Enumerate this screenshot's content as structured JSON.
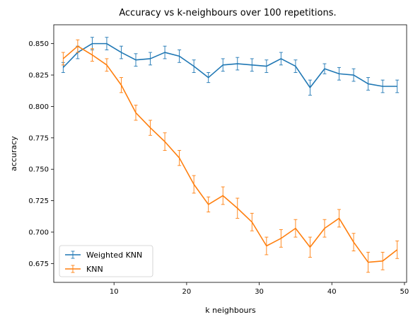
{
  "chart_data": {
    "type": "line",
    "title": "Accuracy vs k-neighbours over 100 repetitions.",
    "xlabel": "k neighbours",
    "ylabel": "accuracy",
    "xlim": [
      1.7,
      50.3
    ],
    "ylim": [
      0.66,
      0.865
    ],
    "xticks": [
      10,
      20,
      30,
      40,
      50
    ],
    "yticks": [
      0.675,
      0.7,
      0.725,
      0.75,
      0.775,
      0.8,
      0.825,
      0.85
    ],
    "ytick_labels": [
      "0.675",
      "0.700",
      "0.725",
      "0.750",
      "0.775",
      "0.800",
      "0.825",
      "0.850"
    ],
    "xtick_labels": [
      "10",
      "20",
      "30",
      "40",
      "50"
    ],
    "grid": false,
    "legend": "lower-left",
    "x": [
      3,
      5,
      7,
      9,
      11,
      13,
      15,
      17,
      19,
      21,
      23,
      25,
      27,
      29,
      31,
      33,
      35,
      37,
      39,
      41,
      43,
      45,
      47,
      49
    ],
    "series": [
      {
        "name": "Weighted KNN",
        "color": "#1f77b4",
        "values": [
          0.831,
          0.843,
          0.85,
          0.85,
          0.843,
          0.837,
          0.838,
          0.843,
          0.84,
          0.832,
          0.823,
          0.833,
          0.834,
          0.833,
          0.832,
          0.838,
          0.832,
          0.815,
          0.83,
          0.826,
          0.825,
          0.818,
          0.816,
          0.816
        ],
        "errors": [
          0.004,
          0.005,
          0.005,
          0.005,
          0.005,
          0.005,
          0.005,
          0.005,
          0.005,
          0.005,
          0.004,
          0.005,
          0.005,
          0.005,
          0.005,
          0.005,
          0.005,
          0.006,
          0.004,
          0.005,
          0.005,
          0.005,
          0.005,
          0.005
        ]
      },
      {
        "name": "KNN",
        "color": "#ff7f0e",
        "values": [
          0.838,
          0.848,
          0.841,
          0.833,
          0.817,
          0.795,
          0.783,
          0.772,
          0.759,
          0.738,
          0.722,
          0.729,
          0.719,
          0.708,
          0.689,
          0.695,
          0.703,
          0.688,
          0.703,
          0.711,
          0.692,
          0.676,
          0.677,
          0.686
        ],
        "errors": [
          0.005,
          0.005,
          0.005,
          0.005,
          0.006,
          0.006,
          0.006,
          0.007,
          0.006,
          0.007,
          0.006,
          0.007,
          0.008,
          0.007,
          0.007,
          0.007,
          0.007,
          0.008,
          0.007,
          0.007,
          0.007,
          0.008,
          0.007,
          0.007
        ]
      }
    ]
  }
}
